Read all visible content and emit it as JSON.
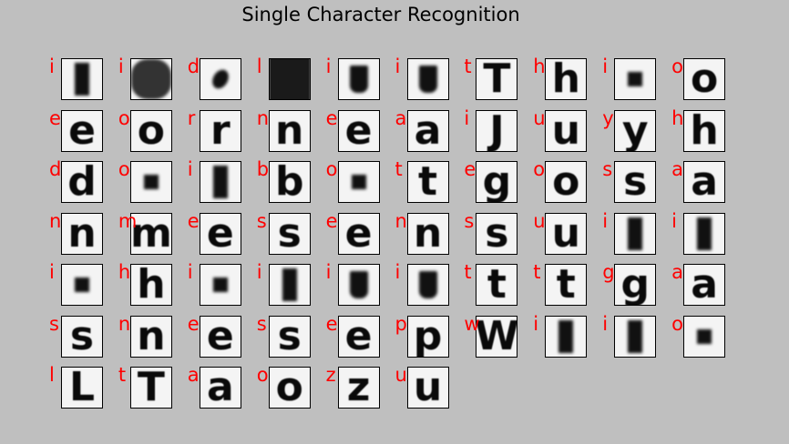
{
  "title": "Single Character Recognition",
  "chart_data": {
    "type": "image-grid",
    "title": "Single Character Recognition",
    "rows": 7,
    "cols": 10,
    "predictions": [
      "i",
      "i",
      "d",
      "l",
      "i",
      "i",
      "t",
      "h",
      "i",
      "o",
      "e",
      "o",
      "r",
      "n",
      "e",
      "a",
      "i",
      "u",
      "y",
      "h",
      "d",
      "o",
      "i",
      "b",
      "o",
      "t",
      "e",
      "o",
      "s",
      "a",
      "n",
      "m",
      "e",
      "s",
      "e",
      "n",
      "s",
      "u",
      "i",
      "i",
      "i",
      "h",
      "i",
      "i",
      "i",
      "i",
      "t",
      "t",
      "g",
      "a",
      "s",
      "n",
      "e",
      "s",
      "e",
      "p",
      "w",
      "i",
      "i",
      "o",
      "l",
      "t",
      "a",
      "o",
      "z",
      "u"
    ],
    "tile_glyphs": [
      "blob-bar",
      "blob-dark",
      "blob-smudge",
      "blob-frame",
      "blob-cup",
      "blob-cup",
      "T",
      "h",
      "blob-dot",
      "o",
      "e",
      "o",
      "r",
      "n",
      "e",
      "a",
      "J",
      "u",
      "y",
      "h",
      "d",
      "blob-dot",
      "blob-bar",
      "b",
      "blob-dot",
      "t",
      "g",
      "o",
      "s",
      "a",
      "n",
      "m",
      "e",
      "s",
      "e",
      "n",
      "s",
      "u",
      "blob-bar",
      "blob-bar",
      "blob-dot",
      "h",
      "blob-dot",
      "blob-bar",
      "blob-cup",
      "blob-cup",
      "t",
      "t",
      "g",
      "a",
      "s",
      "n",
      "e",
      "s",
      "e",
      "p",
      "W",
      "blob-bar",
      "blob-bar",
      "blob-dot",
      "L",
      "T",
      "a",
      "o",
      "z",
      "u"
    ],
    "prediction_color": "#ff0000",
    "background_color": "#bfbfbf"
  }
}
